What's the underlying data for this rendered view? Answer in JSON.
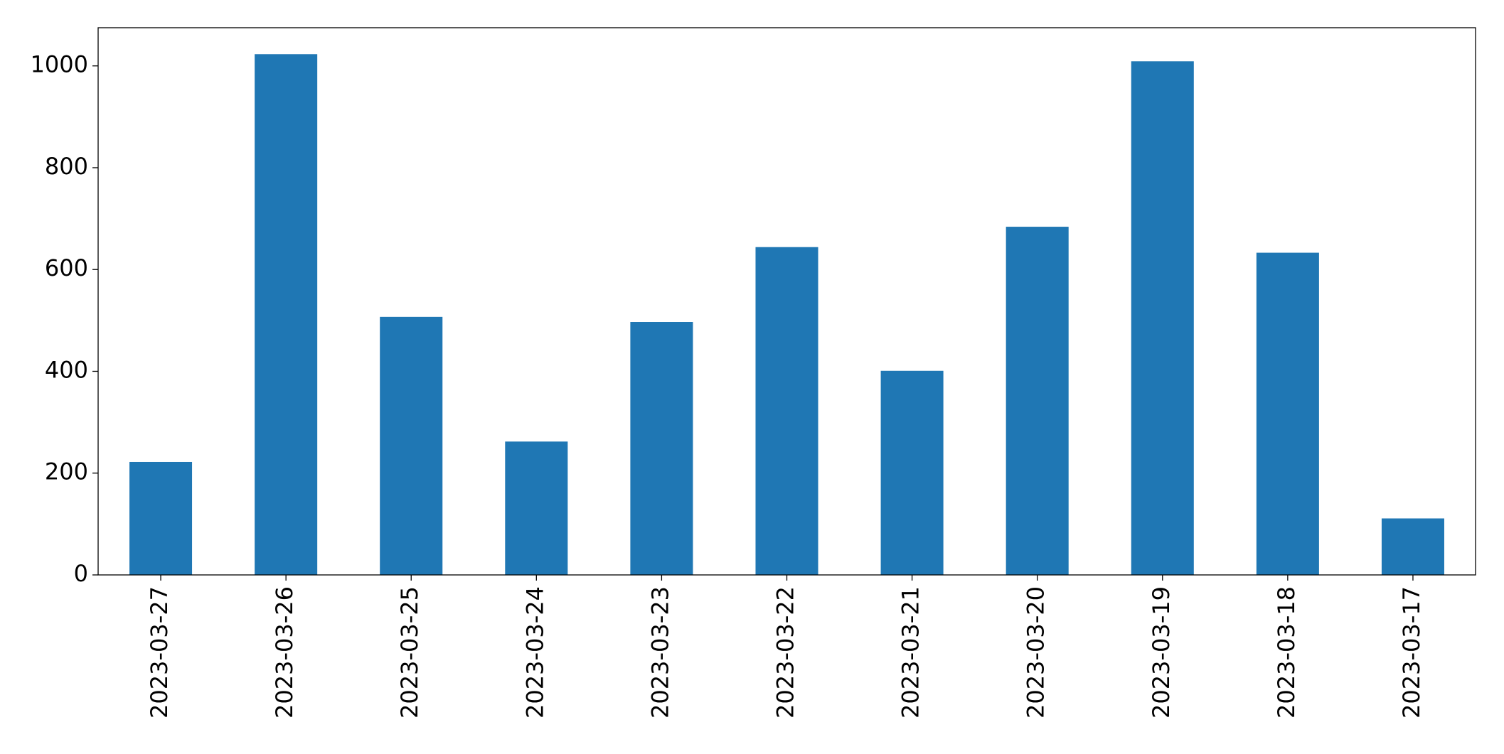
{
  "chart_data": {
    "type": "bar",
    "categories": [
      "2023-03-27",
      "2023-03-26",
      "2023-03-25",
      "2023-03-24",
      "2023-03-23",
      "2023-03-22",
      "2023-03-21",
      "2023-03-20",
      "2023-03-19",
      "2023-03-18",
      "2023-03-17"
    ],
    "values": [
      222,
      1023,
      507,
      262,
      497,
      644,
      401,
      684,
      1009,
      633,
      111
    ],
    "color": "#1f77b4",
    "ylim": [
      0,
      1075
    ],
    "yticks": [
      0,
      200,
      400,
      600,
      800,
      1000
    ],
    "grid": false
  }
}
